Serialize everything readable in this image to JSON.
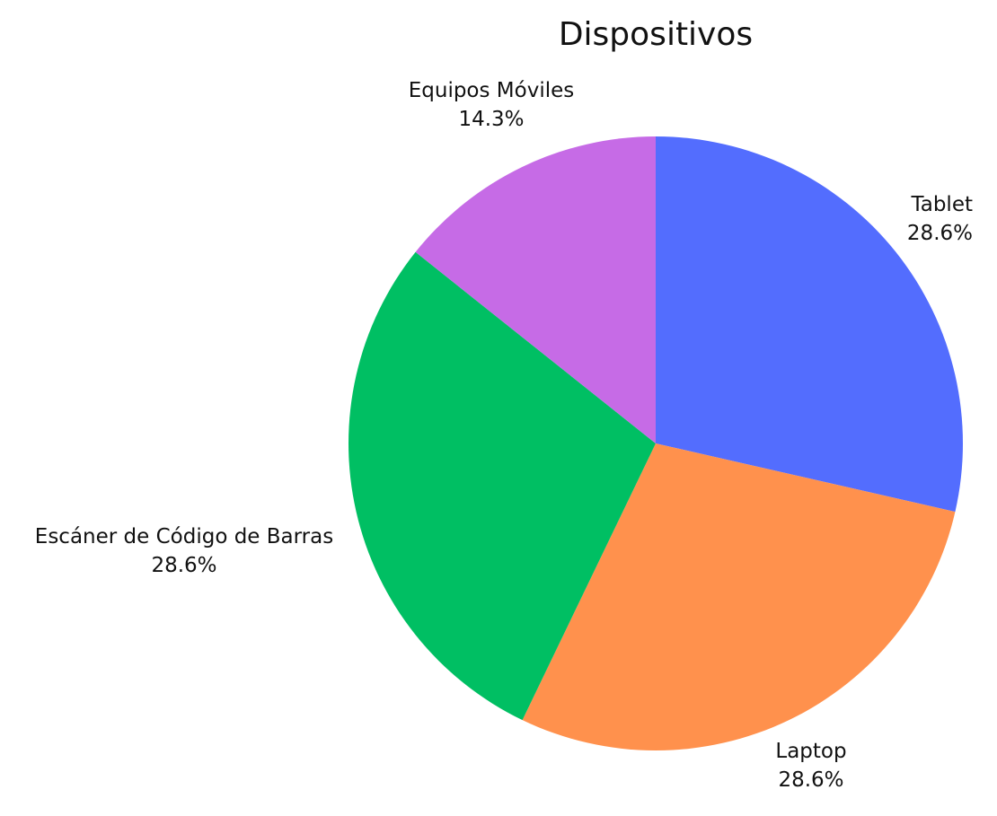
{
  "chart_data": {
    "type": "pie",
    "title": "Dispositivos",
    "start": "12 o'clock",
    "direction": "clockwise",
    "slices": [
      {
        "label": "Tablet",
        "value": 28.6,
        "percent_label": "28.6%",
        "color": "#536DFE"
      },
      {
        "label": "Laptop",
        "value": 28.6,
        "percent_label": "28.6%",
        "color": "#FF914D"
      },
      {
        "label": "Escáner de Código de Barras",
        "value": 28.6,
        "percent_label": "28.6%",
        "color": "#00BF63"
      },
      {
        "label": "Equipos Móviles",
        "value": 14.3,
        "percent_label": "14.3%",
        "color": "#C66BE6"
      }
    ]
  }
}
